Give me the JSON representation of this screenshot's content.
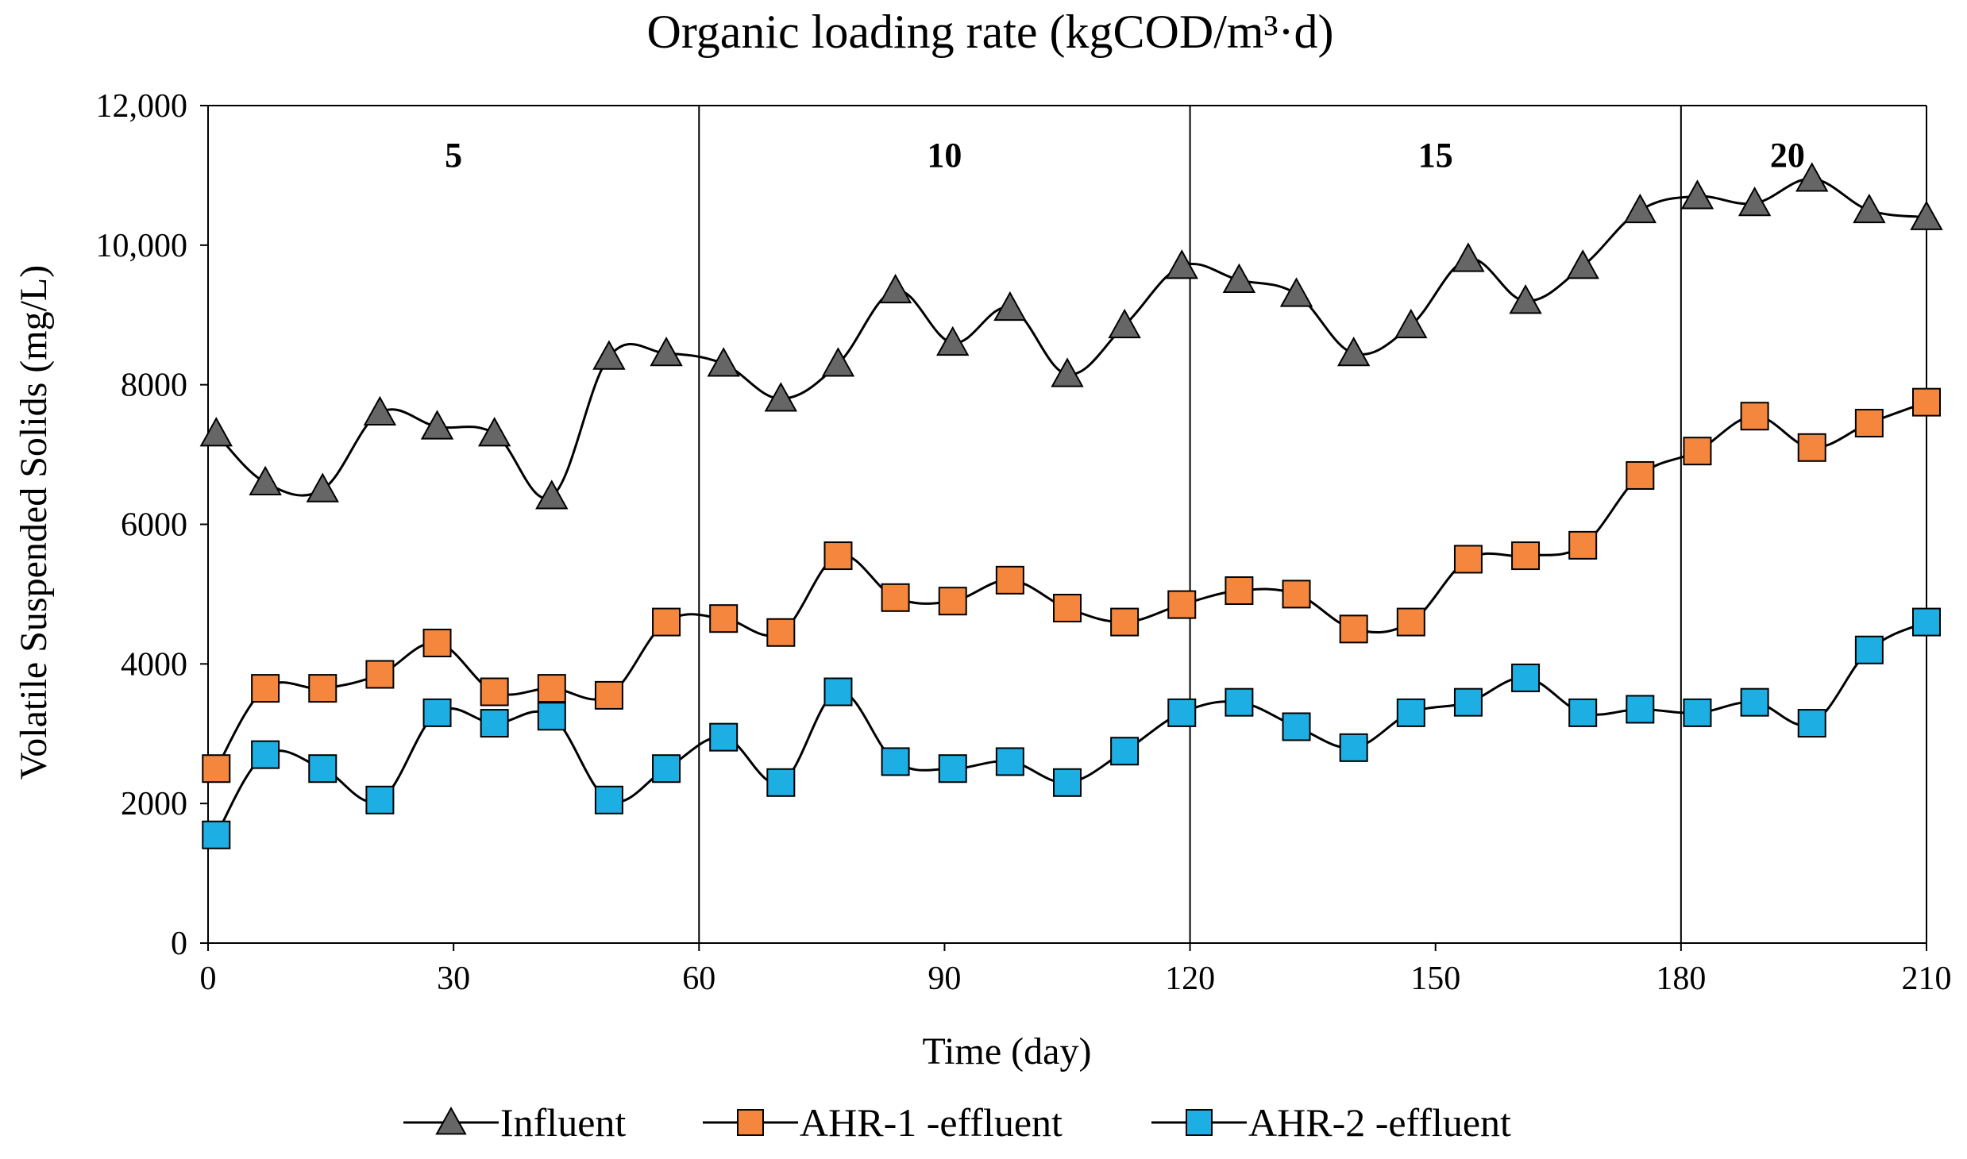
{
  "chart_data": {
    "type": "line",
    "title": "Organic loading rate (kgCOD/m³·d)",
    "xlabel": "Time (day)",
    "ylabel": "Volatile Suspended Solids  (mg/L)",
    "xlim": [
      0,
      210
    ],
    "ylim": [
      0,
      12000
    ],
    "x_ticks": [
      0,
      30,
      60,
      90,
      120,
      150,
      180,
      210
    ],
    "y_ticks": [
      0,
      2000,
      4000,
      6000,
      8000,
      10000,
      12000
    ],
    "y_tick_labels": [
      "0",
      "2000",
      "4000",
      "6000",
      "8000",
      "10,000",
      "12,000"
    ],
    "x_tick_labels": [
      "0",
      "30",
      "60",
      "90",
      "120",
      "150",
      "180",
      "210"
    ],
    "phase_boundaries": [
      60,
      120,
      180,
      210
    ],
    "phases": [
      {
        "label": "5",
        "center": 30
      },
      {
        "label": "10",
        "center": 90
      },
      {
        "label": "15",
        "center": 150
      },
      {
        "label": "20",
        "center": 193
      }
    ],
    "legend_position": "bottom",
    "x": [
      1,
      7,
      14,
      21,
      28,
      35,
      42,
      49,
      56,
      63,
      70,
      77,
      84,
      91,
      98,
      105,
      112,
      119,
      126,
      133,
      140,
      147,
      154,
      161,
      168,
      175,
      182,
      189,
      196,
      203,
      210
    ],
    "series": [
      {
        "name": "Influent",
        "marker": "triangle",
        "color": "#666666",
        "values": [
          7300,
          6600,
          6500,
          7600,
          7400,
          7300,
          6400,
          8400,
          8450,
          8300,
          7800,
          8300,
          9350,
          8600,
          9100,
          8150,
          8850,
          9700,
          9500,
          9300,
          8450,
          8850,
          9800,
          9200,
          9700,
          10500,
          10700,
          10600,
          10950,
          10500,
          10400
        ]
      },
      {
        "name": "AHR-1 -effluent",
        "marker": "square",
        "color": "#F4863E",
        "values": [
          2500,
          3650,
          3650,
          3850,
          4300,
          3600,
          3650,
          3550,
          4600,
          4650,
          4450,
          5550,
          4950,
          4900,
          5200,
          4800,
          4600,
          4850,
          5050,
          5000,
          4500,
          4600,
          5500,
          5550,
          5700,
          6700,
          7050,
          7550,
          7100,
          7450,
          7750
        ]
      },
      {
        "name": "AHR-2 -effluent",
        "marker": "square",
        "color": "#1DAEE3",
        "values": [
          1550,
          2700,
          2500,
          2050,
          3300,
          3150,
          3250,
          2050,
          2500,
          2950,
          2300,
          3600,
          2600,
          2500,
          2600,
          2300,
          2750,
          3300,
          3450,
          3100,
          2800,
          3300,
          3450,
          3800,
          3300,
          3350,
          3300,
          3450,
          3150,
          4200,
          4600
        ]
      }
    ]
  }
}
